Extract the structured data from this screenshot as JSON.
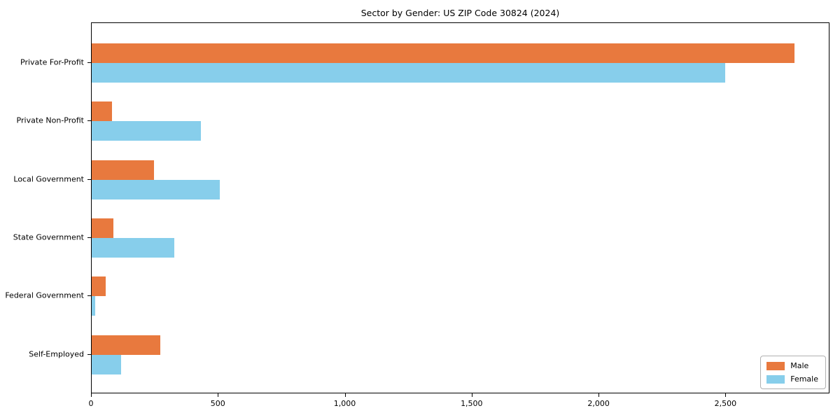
{
  "chart_data": {
    "type": "bar",
    "orientation": "horizontal",
    "title": "Sector by Gender: US ZIP Code 30824 (2024)",
    "categories": [
      "Private For-Profit",
      "Private Non-Profit",
      "Local Government",
      "State Government",
      "Federal Government",
      "Self-Employed"
    ],
    "series": [
      {
        "name": "Male",
        "color": "#e8793e",
        "values": [
          2770,
          80,
          245,
          85,
          55,
          270
        ]
      },
      {
        "name": "Female",
        "color": "#87ceeb",
        "values": [
          2495,
          430,
          505,
          325,
          15,
          115
        ]
      }
    ],
    "xlabel": "",
    "ylabel": "",
    "xlim": [
      0,
      2910
    ],
    "xticks": [
      {
        "value": 0,
        "label": "0"
      },
      {
        "value": 500,
        "label": "500"
      },
      {
        "value": 1000,
        "label": "1,000"
      },
      {
        "value": 1500,
        "label": "1,500"
      },
      {
        "value": 2000,
        "label": "2,000"
      },
      {
        "value": 2500,
        "label": "2,500"
      }
    ],
    "grid": false,
    "legend_position": "lower right"
  }
}
